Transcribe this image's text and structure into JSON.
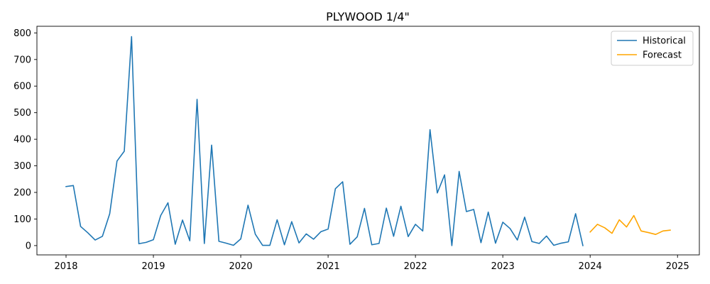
{
  "chart_data": {
    "type": "line",
    "title": "PLYWOOD 1/4\"",
    "xlabel": "",
    "ylabel": "",
    "x_ticks": [
      "2018",
      "2019",
      "2020",
      "2021",
      "2022",
      "2023",
      "2024",
      "2025"
    ],
    "y_ticks": [
      "0",
      "100",
      "200",
      "300",
      "400",
      "500",
      "600",
      "700",
      "800"
    ],
    "xlim": [
      "2017-09-01",
      "2025-04-01"
    ],
    "ylim": [
      -35,
      825
    ],
    "grid": false,
    "legend_position": "top-right",
    "series": [
      {
        "name": "Historical",
        "color": "#1f77b4",
        "points": [
          [
            "2018-01",
            222
          ],
          [
            "2018-02",
            226
          ],
          [
            "2018-03",
            72
          ],
          [
            "2018-04",
            48
          ],
          [
            "2018-05",
            21
          ],
          [
            "2018-06",
            35
          ],
          [
            "2018-07",
            120
          ],
          [
            "2018-08",
            318
          ],
          [
            "2018-09",
            355
          ],
          [
            "2018-10",
            786
          ],
          [
            "2018-11",
            7
          ],
          [
            "2018-12",
            12
          ],
          [
            "2019-01",
            22
          ],
          [
            "2019-02",
            113
          ],
          [
            "2019-03",
            161
          ],
          [
            "2019-04",
            5
          ],
          [
            "2019-05",
            96
          ],
          [
            "2019-06",
            18
          ],
          [
            "2019-07",
            550
          ],
          [
            "2019-08",
            8
          ],
          [
            "2019-09",
            378
          ],
          [
            "2019-10",
            16
          ],
          [
            "2019-11",
            9
          ],
          [
            "2019-12",
            1
          ],
          [
            "2020-01",
            25
          ],
          [
            "2020-02",
            152
          ],
          [
            "2020-03",
            43
          ],
          [
            "2020-04",
            1
          ],
          [
            "2020-05",
            1
          ],
          [
            "2020-06",
            97
          ],
          [
            "2020-07",
            3
          ],
          [
            "2020-08",
            90
          ],
          [
            "2020-09",
            10
          ],
          [
            "2020-10",
            44
          ],
          [
            "2020-11",
            24
          ],
          [
            "2020-12",
            52
          ],
          [
            "2021-01",
            62
          ],
          [
            "2021-02",
            214
          ],
          [
            "2021-03",
            240
          ],
          [
            "2021-04",
            5
          ],
          [
            "2021-05",
            33
          ],
          [
            "2021-06",
            140
          ],
          [
            "2021-07",
            3
          ],
          [
            "2021-08",
            8
          ],
          [
            "2021-09",
            141
          ],
          [
            "2021-10",
            35
          ],
          [
            "2021-11",
            148
          ],
          [
            "2021-12",
            34
          ],
          [
            "2022-01",
            80
          ],
          [
            "2022-02",
            55
          ],
          [
            "2022-03",
            436
          ],
          [
            "2022-04",
            198
          ],
          [
            "2022-05",
            266
          ],
          [
            "2022-06",
            0
          ],
          [
            "2022-07",
            279
          ],
          [
            "2022-08",
            128
          ],
          [
            "2022-09",
            136
          ],
          [
            "2022-10",
            11
          ],
          [
            "2022-11",
            126
          ],
          [
            "2022-12",
            9
          ],
          [
            "2023-01",
            88
          ],
          [
            "2023-02",
            64
          ],
          [
            "2023-03",
            21
          ],
          [
            "2023-04",
            107
          ],
          [
            "2023-05",
            15
          ],
          [
            "2023-06",
            8
          ],
          [
            "2023-07",
            36
          ],
          [
            "2023-08",
            1
          ],
          [
            "2023-09",
            9
          ],
          [
            "2023-10",
            14
          ],
          [
            "2023-11",
            120
          ],
          [
            "2023-12",
            0
          ]
        ]
      },
      {
        "name": "Forecast",
        "color": "#ffa500",
        "points": [
          [
            "2024-01",
            51
          ],
          [
            "2024-02",
            80
          ],
          [
            "2024-03",
            67
          ],
          [
            "2024-04",
            46
          ],
          [
            "2024-05",
            97
          ],
          [
            "2024-06",
            70
          ],
          [
            "2024-07",
            113
          ],
          [
            "2024-08",
            55
          ],
          [
            "2024-09",
            49
          ],
          [
            "2024-10",
            42
          ],
          [
            "2024-11",
            55
          ],
          [
            "2024-12",
            58
          ]
        ]
      }
    ]
  }
}
